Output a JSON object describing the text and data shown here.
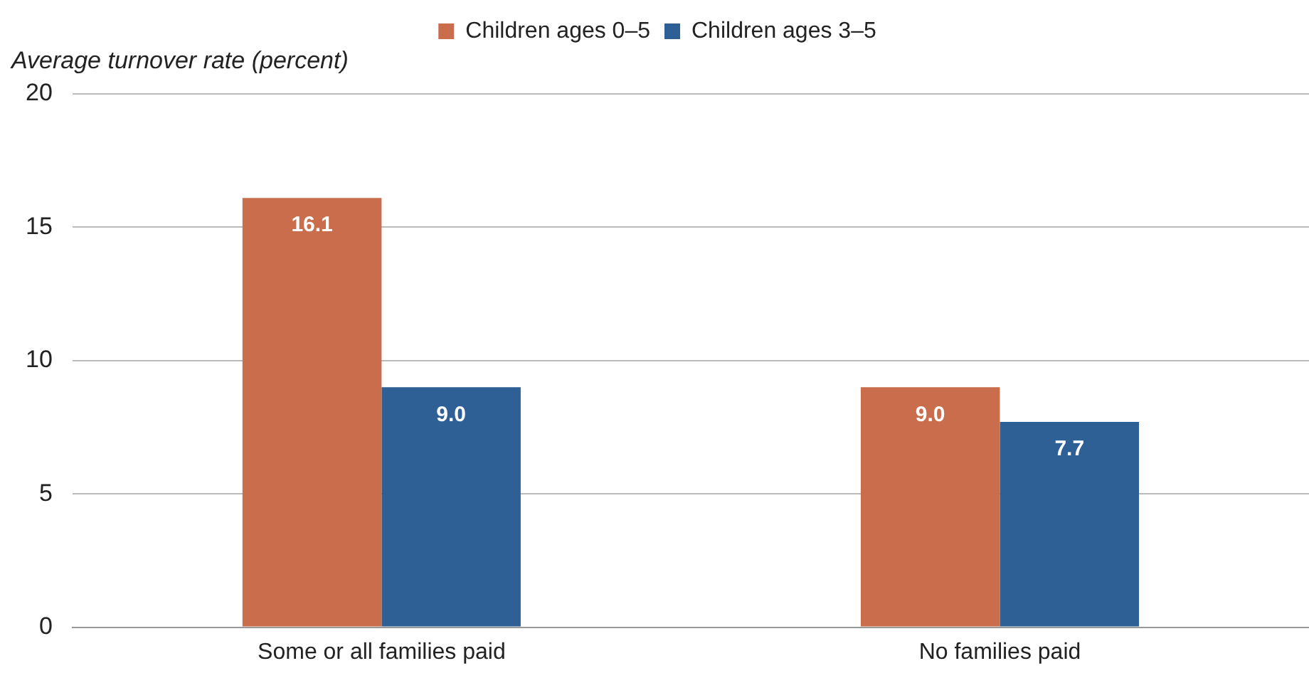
{
  "chart_data": {
    "type": "bar",
    "ylabel": "Average turnover rate (percent)",
    "categories": [
      "Some or all families paid",
      "No families paid"
    ],
    "series": [
      {
        "name": "Children ages 0–5",
        "color": "#c96d4c",
        "values": [
          16.1,
          9.0
        ]
      },
      {
        "name": "Children ages 3–5",
        "color": "#2e6096",
        "values": [
          9.0,
          7.7
        ]
      }
    ],
    "value_labels": [
      [
        "16.1",
        "9.0"
      ],
      [
        "9.0",
        "7.7"
      ]
    ],
    "ylim": [
      0,
      20
    ],
    "yticks": [
      0,
      5,
      10,
      15,
      20
    ],
    "grid": "y",
    "legend": "top"
  }
}
